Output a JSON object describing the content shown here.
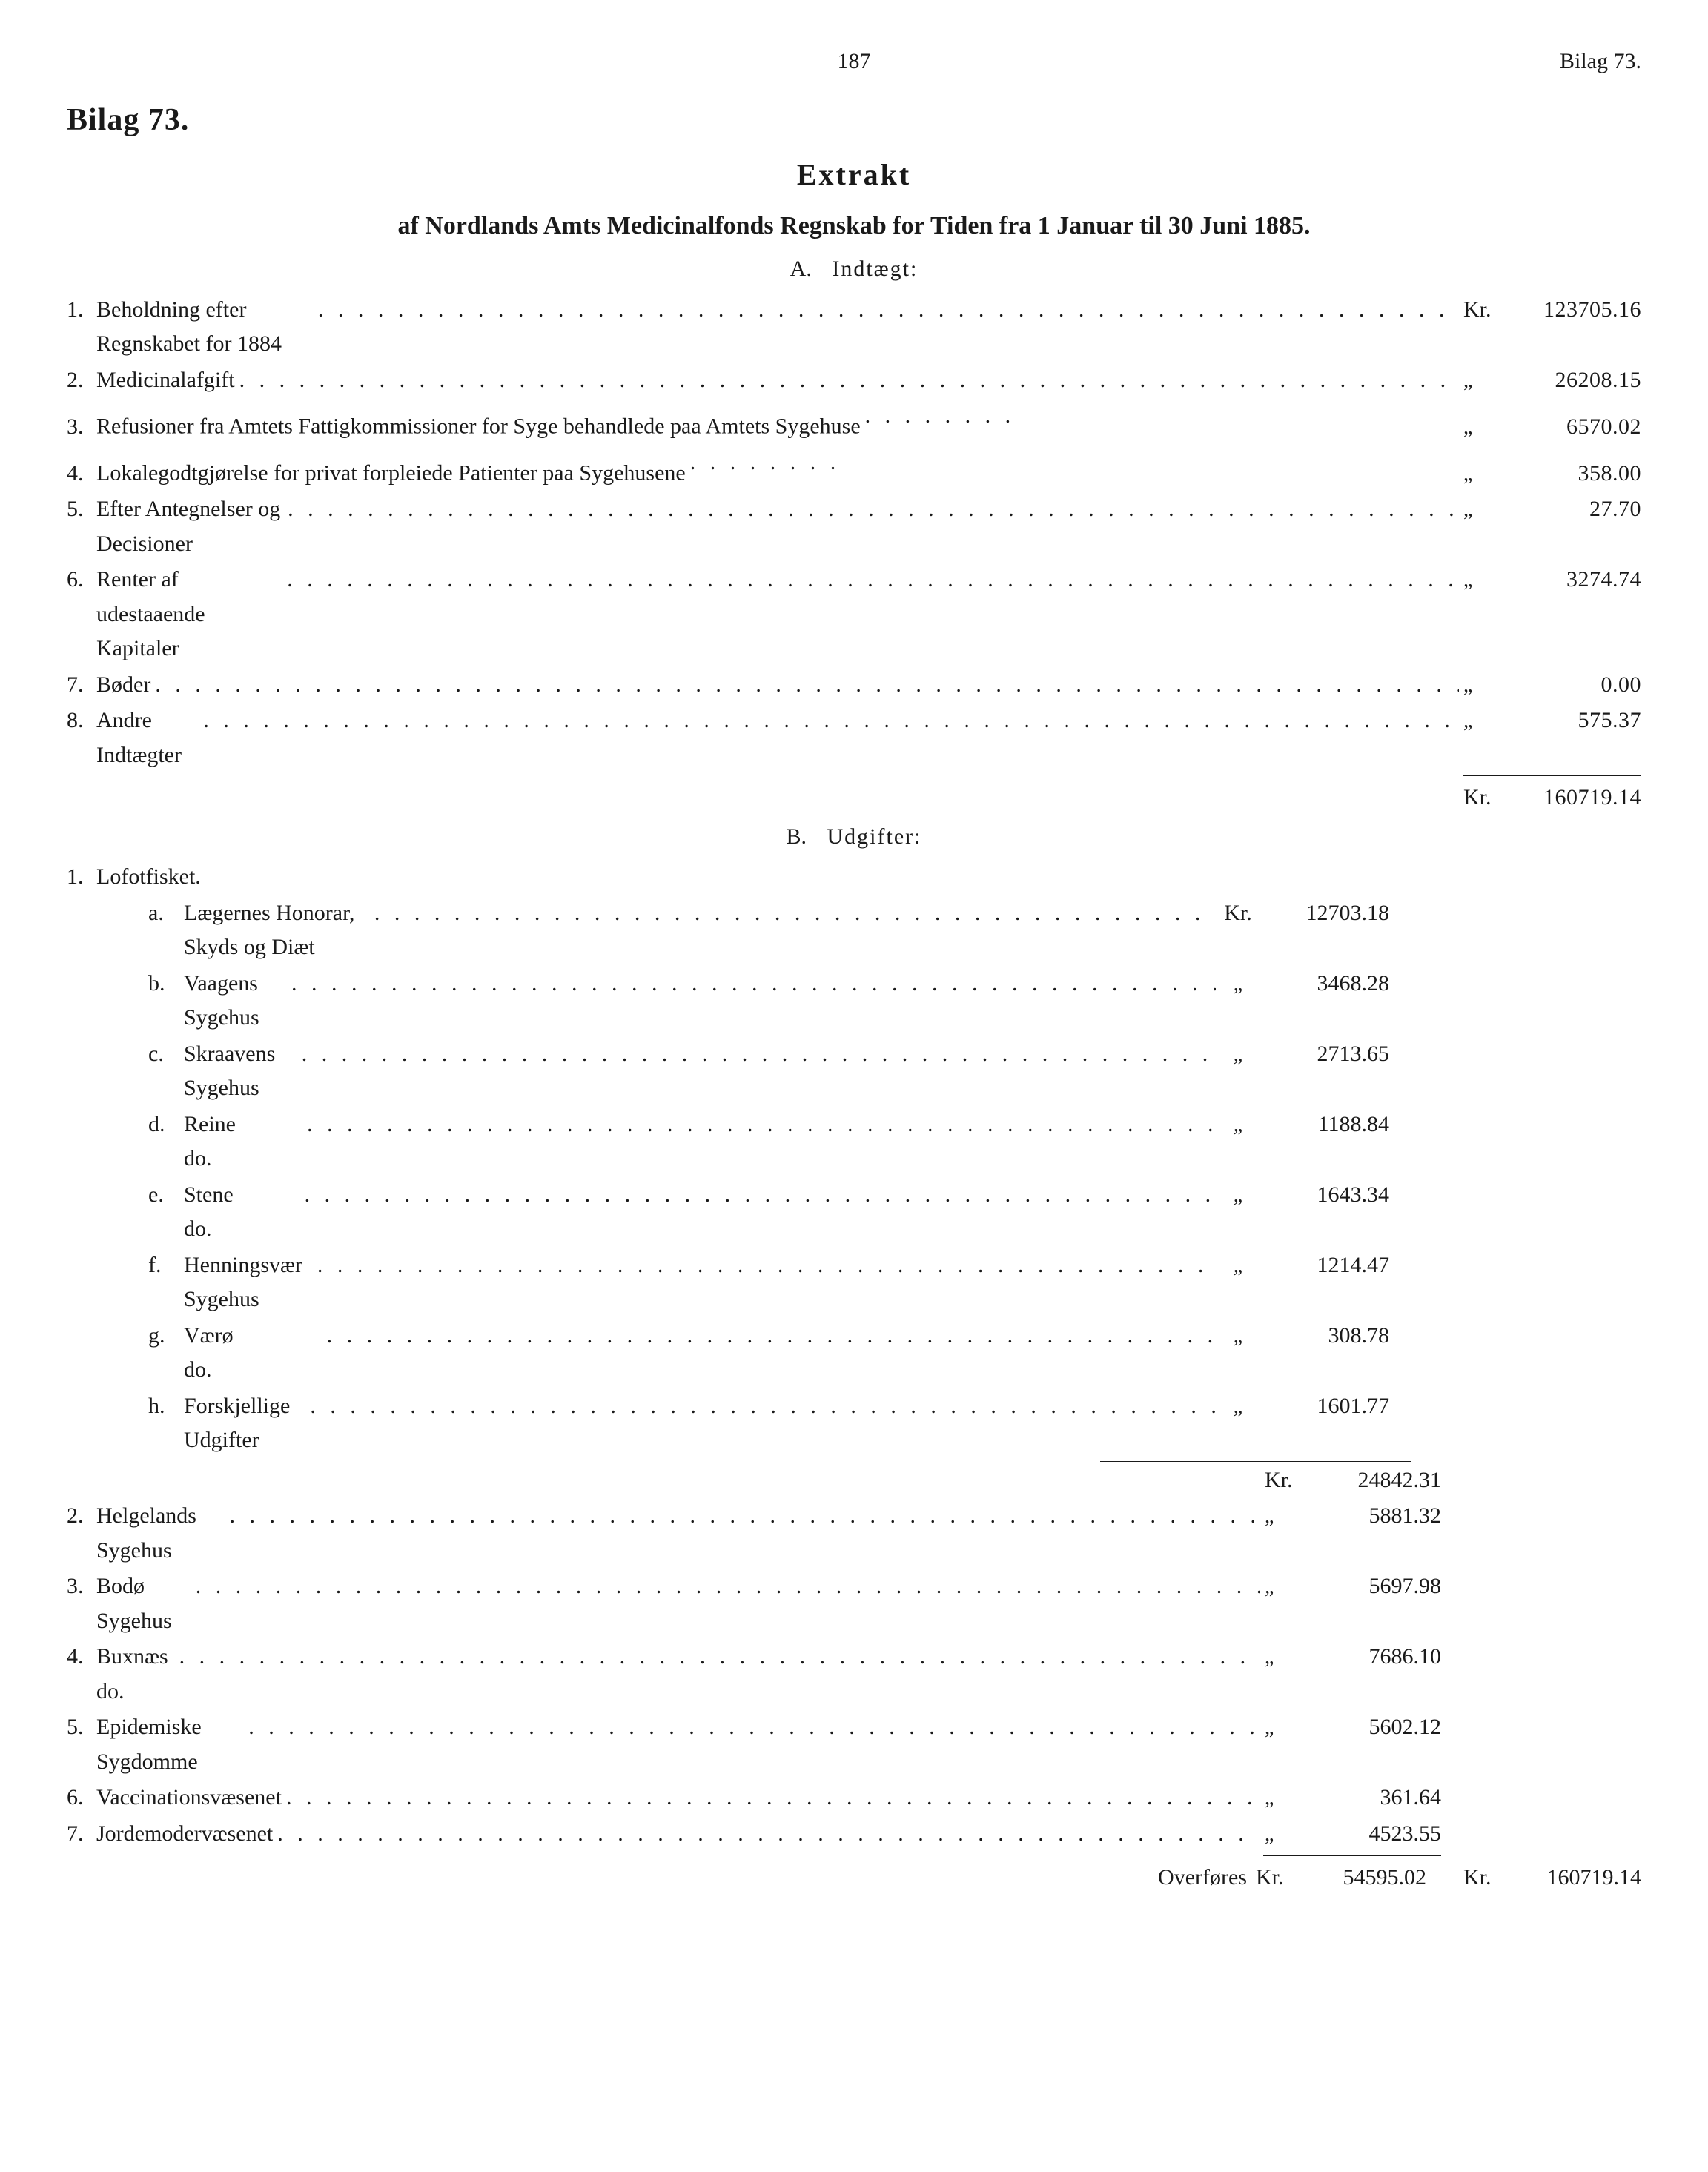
{
  "page": {
    "number": "187",
    "bilag_corner": "Bilag 73."
  },
  "heading": "Bilag 73.",
  "title": {
    "main": "Extrakt",
    "sub": "af Nordlands Amts Medicinalfonds Regnskab for Tiden fra 1 Januar til 30 Juni 1885."
  },
  "sections": {
    "indtaegt": {
      "label_lead": "A.",
      "label": "Indtægt:",
      "kr_label": "Kr.",
      "ditto": "„",
      "rows": [
        {
          "n": "1.",
          "desc": "Beholdning efter Regnskabet for 1884",
          "unit": "Kr.",
          "amount": "123705.16"
        },
        {
          "n": "2.",
          "desc": "Medicinalafgift",
          "unit": "„",
          "amount": "26208.15"
        },
        {
          "n": "3.",
          "desc": "Refusioner fra Amtets Fattigkommissioner for Syge behandlede paa Amtets Sygehuse",
          "unit": "„",
          "amount": "6570.02",
          "wrap": true
        },
        {
          "n": "4.",
          "desc": "Lokalegodtgjørelse for privat forpleiede Patienter paa Sygehusene",
          "unit": "„",
          "amount": "358.00",
          "wrap": true
        },
        {
          "n": "5.",
          "desc": "Efter Antegnelser og Decisioner",
          "unit": "„",
          "amount": "27.70"
        },
        {
          "n": "6.",
          "desc": "Renter af udestaaende Kapitaler",
          "unit": "„",
          "amount": "3274.74"
        },
        {
          "n": "7.",
          "desc": "Bøder",
          "unit": "„",
          "amount": "0.00"
        },
        {
          "n": "8.",
          "desc": "Andre Indtægter",
          "unit": "„",
          "amount": "575.37"
        }
      ],
      "total": {
        "unit": "Kr.",
        "amount": "160719.14"
      }
    },
    "udgifter": {
      "label_lead": "B.",
      "label": "Udgifter:",
      "row1_label": "Lofotfisket.",
      "sub": [
        {
          "k": "a.",
          "desc": "Lægernes Honorar, Skyds og Diæt",
          "unit": "Kr.",
          "amount": "12703.18",
          "wrap": true
        },
        {
          "k": "b.",
          "desc": "Vaagens Sygehus",
          "unit": "„",
          "amount": "3468.28"
        },
        {
          "k": "c.",
          "desc": "Skraavens Sygehus",
          "unit": "„",
          "amount": "2713.65"
        },
        {
          "k": "d.",
          "desc": "Reine   do.",
          "unit": "„",
          "amount": "1188.84"
        },
        {
          "k": "e.",
          "desc": "Stene   do.",
          "unit": "„",
          "amount": "1643.34"
        },
        {
          "k": "f.",
          "desc": "Henningsvær Sygehus",
          "unit": "„",
          "amount": "1214.47"
        },
        {
          "k": "g.",
          "desc": "Værø    do.",
          "unit": "„",
          "amount": "308.78"
        },
        {
          "k": "h.",
          "desc": "Forskjellige Udgifter",
          "unit": "„",
          "amount": "1601.77"
        }
      ],
      "rows": [
        {
          "n": "",
          "desc": "",
          "unit": "Kr.",
          "amount": "24842.31"
        },
        {
          "n": "2.",
          "desc": "Helgelands Sygehus",
          "unit": "„",
          "amount": "5881.32"
        },
        {
          "n": "3.",
          "desc": "Bodø Sygehus",
          "unit": "„",
          "amount": "5697.98"
        },
        {
          "n": "4.",
          "desc": "Buxnæs do.",
          "unit": "„",
          "amount": "7686.10"
        },
        {
          "n": "5.",
          "desc": "Epidemiske Sygdomme",
          "unit": "„",
          "amount": "5602.12"
        },
        {
          "n": "6.",
          "desc": "Vaccinationsvæsenet",
          "unit": "„",
          "amount": "361.64"
        },
        {
          "n": "7.",
          "desc": "Jordemodervæsenet",
          "unit": "„",
          "amount": "4523.55"
        }
      ],
      "footer": {
        "label": "Overføres",
        "unit1": "Kr.",
        "amount1": "54595.02",
        "unit2": "Kr.",
        "amount2": "160719.14"
      }
    }
  }
}
